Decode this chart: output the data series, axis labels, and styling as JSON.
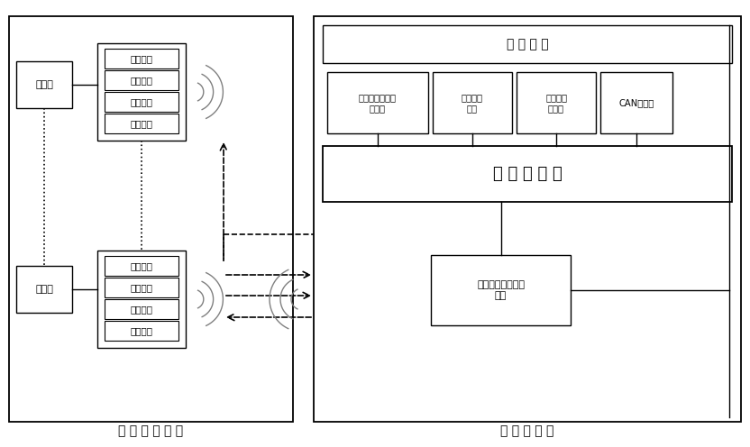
{
  "fig_width": 8.32,
  "fig_height": 4.96,
  "dpi": 100,
  "bg_color": "#ffffff",
  "left_system_label": "电 池 监 控 系 统",
  "right_system_label": "主 控 制 系 统",
  "battery_groups": [
    "电池组",
    "电池组"
  ],
  "slave_modules": [
    "通信传输",
    "温度采集",
    "均衡控制",
    "电压采集"
  ],
  "power_module_label": "电 源 模 块",
  "micro_module_label": "微 处 理 模 块",
  "wireless_module_label": "主控系统无线通信\n模块",
  "sub_modules": [
    "继电器控制及诊\n断模块",
    "握手收发\n模块",
    "非挥发记\n忆模块",
    "CAN收发器"
  ]
}
